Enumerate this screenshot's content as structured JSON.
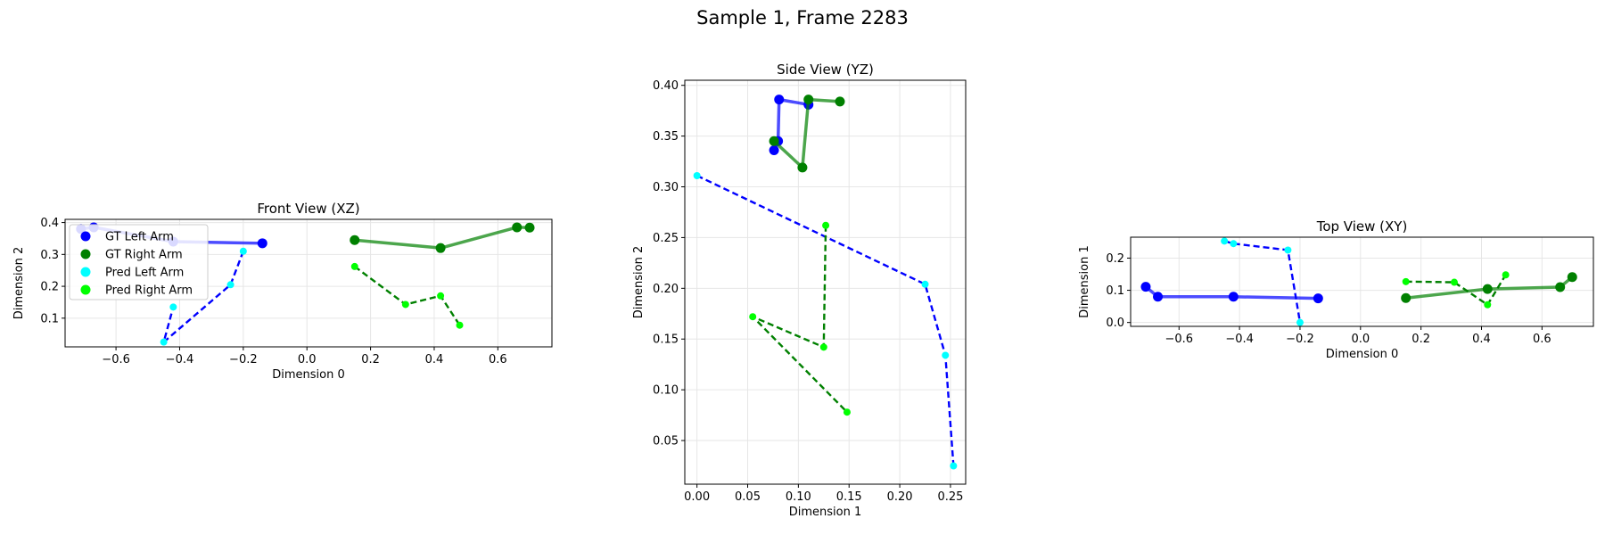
{
  "figure_title": "Sample 1, Frame 2283",
  "colors": {
    "gt_left": "#0000ff",
    "gt_right": "#008000",
    "pred_left": "#00ffff",
    "pred_right": "#00ff00",
    "pred_left_line": "#0000ff",
    "pred_right_line": "#008000"
  },
  "legend": {
    "entries": [
      {
        "label": "GT Left Arm",
        "marker_color": "#0000ff"
      },
      {
        "label": "GT Right Arm",
        "marker_color": "#008000"
      },
      {
        "label": "Pred Left Arm",
        "marker_color": "#00ffff"
      },
      {
        "label": "Pred Right Arm",
        "marker_color": "#00ff00"
      }
    ],
    "placement": "upper-left of Front View"
  },
  "chart_data": [
    {
      "type": "line",
      "title": "Front View (XZ)",
      "xlabel": "Dimension 0",
      "ylabel": "Dimension 2",
      "xlim": [
        -0.76,
        0.77
      ],
      "ylim": [
        0.01,
        0.41
      ],
      "xticks": [
        -0.6,
        -0.4,
        -0.2,
        0.0,
        0.2,
        0.4,
        0.6
      ],
      "xtick_labels": [
        "−0.6",
        "−0.4",
        "−0.2",
        "0.0",
        "0.2",
        "0.4",
        "0.6"
      ],
      "yticks": [
        0.1,
        0.2,
        0.3,
        0.4
      ],
      "ytick_labels": [
        "0.1",
        "0.2",
        "0.3",
        "0.4"
      ],
      "grid": true,
      "legend": true,
      "series": [
        {
          "name": "GT Left Arm",
          "style": "solid",
          "x": [
            -0.71,
            -0.67,
            -0.42,
            -0.14
          ],
          "y": [
            0.38,
            0.385,
            0.34,
            0.335
          ]
        },
        {
          "name": "GT Right Arm",
          "style": "solid",
          "x": [
            0.15,
            0.42,
            0.66,
            0.7
          ],
          "y": [
            0.345,
            0.32,
            0.385,
            0.384
          ]
        },
        {
          "name": "Pred Left Arm",
          "style": "dashed",
          "x": [
            -0.2,
            -0.24,
            -0.45,
            -0.42
          ],
          "y": [
            0.31,
            0.205,
            0.025,
            0.135
          ]
        },
        {
          "name": "Pred Right Arm",
          "style": "dashed",
          "x": [
            0.15,
            0.31,
            0.42,
            0.48
          ],
          "y": [
            0.262,
            0.143,
            0.17,
            0.078
          ]
        }
      ]
    },
    {
      "type": "line",
      "title": "Side View (YZ)",
      "xlabel": "Dimension 1",
      "ylabel": "Dimension 2",
      "xlim": [
        -0.012,
        0.265
      ],
      "ylim": [
        0.007,
        0.405
      ],
      "xticks": [
        0.0,
        0.05,
        0.1,
        0.15,
        0.2,
        0.25
      ],
      "xtick_labels": [
        "0.00",
        "0.05",
        "0.10",
        "0.15",
        "0.20",
        "0.25"
      ],
      "yticks": [
        0.05,
        0.1,
        0.15,
        0.2,
        0.25,
        0.3,
        0.35,
        0.4
      ],
      "ytick_labels": [
        "0.05",
        "0.10",
        "0.15",
        "0.20",
        "0.25",
        "0.30",
        "0.35",
        "0.40"
      ],
      "grid": true,
      "legend": false,
      "series": [
        {
          "name": "GT Left Arm",
          "style": "solid",
          "x": [
            0.076,
            0.08,
            0.081,
            0.11
          ],
          "y": [
            0.336,
            0.345,
            0.386,
            0.381
          ]
        },
        {
          "name": "GT Right Arm",
          "style": "solid",
          "x": [
            0.076,
            0.104,
            0.11,
            0.141
          ],
          "y": [
            0.345,
            0.319,
            0.386,
            0.384
          ]
        },
        {
          "name": "Pred Left Arm",
          "style": "dashed",
          "x": [
            0.0,
            0.225,
            0.245,
            0.253
          ],
          "y": [
            0.311,
            0.204,
            0.134,
            0.025
          ]
        },
        {
          "name": "Pred Right Arm",
          "style": "dashed",
          "x": [
            0.127,
            0.125,
            0.055,
            0.148
          ],
          "y": [
            0.262,
            0.142,
            0.172,
            0.078
          ]
        }
      ]
    },
    {
      "type": "line",
      "title": "Top View (XY)",
      "xlabel": "Dimension 0",
      "ylabel": "Dimension 1",
      "xlim": [
        -0.76,
        0.77
      ],
      "ylim": [
        -0.012,
        0.265
      ],
      "xticks": [
        -0.6,
        -0.4,
        -0.2,
        0.0,
        0.2,
        0.4,
        0.6
      ],
      "xtick_labels": [
        "−0.6",
        "−0.4",
        "−0.2",
        "0.0",
        "0.2",
        "0.4",
        "0.6"
      ],
      "yticks": [
        0.0,
        0.1,
        0.2
      ],
      "ytick_labels": [
        "0.0",
        "0.1",
        "0.2"
      ],
      "grid": true,
      "legend": false,
      "series": [
        {
          "name": "GT Left Arm",
          "style": "solid",
          "x": [
            -0.71,
            -0.67,
            -0.42,
            -0.14
          ],
          "y": [
            0.111,
            0.08,
            0.08,
            0.075
          ]
        },
        {
          "name": "GT Right Arm",
          "style": "solid",
          "x": [
            0.15,
            0.42,
            0.66,
            0.7
          ],
          "y": [
            0.076,
            0.104,
            0.11,
            0.141
          ]
        },
        {
          "name": "Pred Left Arm",
          "style": "dashed",
          "x": [
            -0.45,
            -0.42,
            -0.24,
            -0.2
          ],
          "y": [
            0.253,
            0.245,
            0.225,
            0.0
          ]
        },
        {
          "name": "Pred Right Arm",
          "style": "dashed",
          "x": [
            0.15,
            0.31,
            0.42,
            0.48
          ],
          "y": [
            0.127,
            0.125,
            0.055,
            0.148
          ]
        }
      ]
    }
  ]
}
